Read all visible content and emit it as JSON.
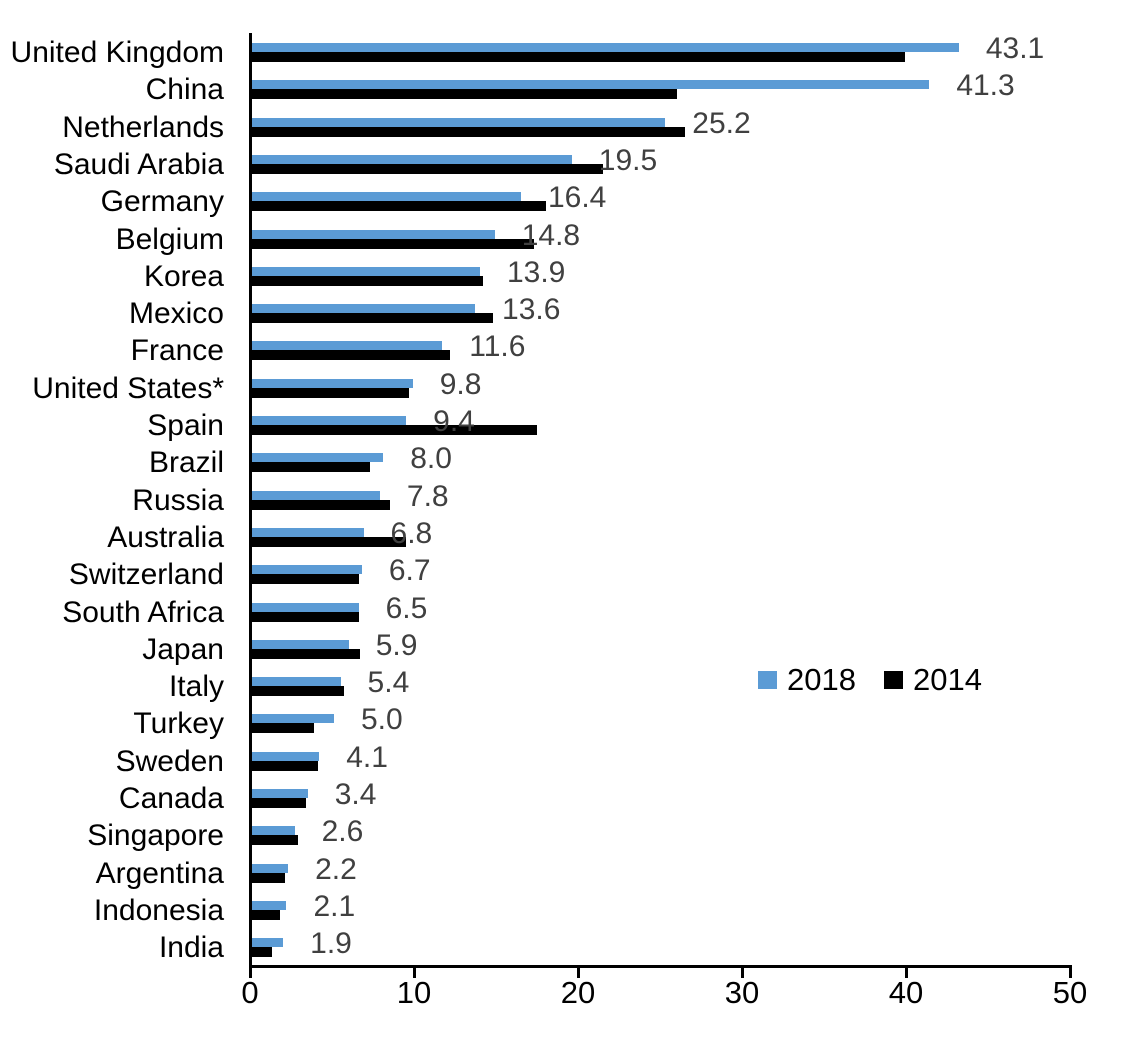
{
  "chart_data": {
    "type": "bar",
    "orientation": "horizontal",
    "categories": [
      "United Kingdom",
      "China",
      "Netherlands",
      "Saudi Arabia",
      "Germany",
      "Belgium",
      "Korea",
      "Mexico",
      "France",
      "United States*",
      "Spain",
      "Brazil",
      "Russia",
      "Australia",
      "Switzerland",
      "South Africa",
      "Japan",
      "Italy",
      "Turkey",
      "Sweden",
      "Canada",
      "Singapore",
      "Argentina",
      "Indonesia",
      "India"
    ],
    "series": [
      {
        "name": "2018",
        "color": "#5B9BD5",
        "values": [
          43.1,
          41.3,
          25.2,
          19.5,
          16.4,
          14.8,
          13.9,
          13.6,
          11.6,
          9.8,
          9.4,
          8.0,
          7.8,
          6.8,
          6.7,
          6.5,
          5.9,
          5.4,
          5.0,
          4.1,
          3.4,
          2.6,
          2.2,
          2.1,
          1.9
        ],
        "labels": [
          "43.1",
          "41.3",
          "25.2",
          "19.5",
          "16.4",
          "14.8",
          "13.9",
          "13.6",
          "11.6",
          "9.8",
          "9.4",
          "8.0",
          "7.8",
          "6.8",
          "6.7",
          "6.5",
          "5.9",
          "5.4",
          "5.0",
          "4.1",
          "3.4",
          "2.6",
          "2.2",
          "2.1",
          "1.9"
        ]
      },
      {
        "name": "2014",
        "color": "#000000",
        "values_estimated_from_pixels": true,
        "values": [
          39.8,
          25.9,
          26.4,
          21.4,
          17.9,
          17.2,
          14.1,
          14.7,
          12.1,
          9.6,
          17.4,
          7.2,
          8.4,
          9.4,
          6.5,
          6.5,
          6.6,
          5.6,
          3.8,
          4.0,
          3.3,
          2.8,
          2.0,
          1.7,
          1.2
        ]
      }
    ],
    "xlim": [
      0,
      50
    ],
    "x_ticks": [
      "0",
      "10",
      "20",
      "30",
      "40",
      "50"
    ],
    "value_label_color": "#404040",
    "legend_position": "middle-right",
    "grid": false
  },
  "legend": {
    "items": [
      {
        "label": "2018",
        "color": "#5B9BD5"
      },
      {
        "label": "2014",
        "color": "#000000"
      }
    ]
  }
}
